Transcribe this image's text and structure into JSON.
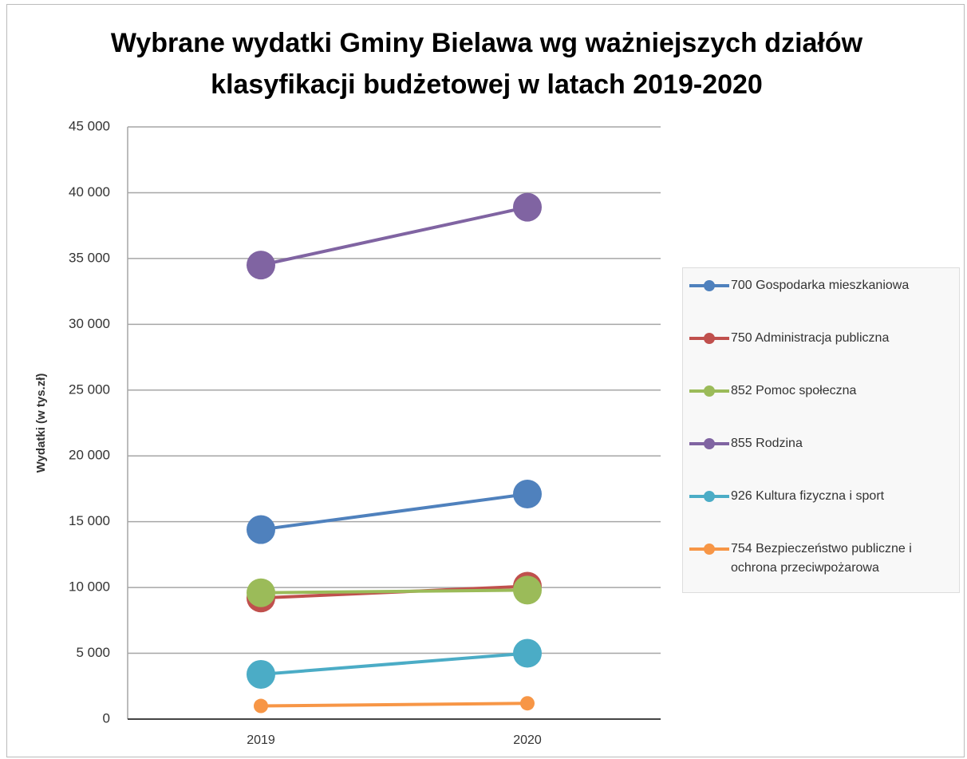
{
  "chart_data": {
    "type": "line",
    "title": "Wybrane wydatki Gminy Bielawa wg ważniejszych działów klasyfikacji budżetowej w latach 2019-2020",
    "y_label": "Wydatki  (w tys.zł)",
    "categories": [
      "2019",
      "2020"
    ],
    "series": [
      {
        "name": "700 Gospodarka mieszkaniowa",
        "color": "#4f81bd",
        "values": [
          14400,
          17100
        ]
      },
      {
        "name": "750 Administracja publiczna",
        "color": "#c0504d",
        "values": [
          9200,
          10100
        ]
      },
      {
        "name": "852 Pomoc społeczna",
        "color": "#9bbb59",
        "values": [
          9600,
          9800
        ]
      },
      {
        "name": "855 Rodzina",
        "color": "#8064a2",
        "values": [
          34500,
          38900
        ]
      },
      {
        "name": "926 Kultura fizyczna i sport",
        "color": "#4bacc6",
        "values": [
          3400,
          5000
        ]
      },
      {
        "name": "754 Bezpieczeństwo publiczne i ochrona przeciwpożarowa",
        "color": "#f79646",
        "values": [
          1000,
          1200
        ]
      }
    ],
    "ylim": [
      0,
      45000
    ],
    "yticks": [
      0,
      {
        "value": 5000,
        "label": "5 000"
      },
      {
        "value": 10000,
        "label": "10 000"
      },
      {
        "value": 15000,
        "label": "15 000"
      },
      {
        "value": 20000,
        "label": "20 000"
      },
      {
        "value": 25000,
        "label": "25 000"
      },
      {
        "value": 30000,
        "label": "30 000"
      },
      {
        "value": 35000,
        "label": "35 000"
      },
      {
        "value": 40000,
        "label": "40 000"
      },
      {
        "value": 45000,
        "label": "45 000"
      }
    ],
    "grid": true,
    "legend": "right"
  }
}
